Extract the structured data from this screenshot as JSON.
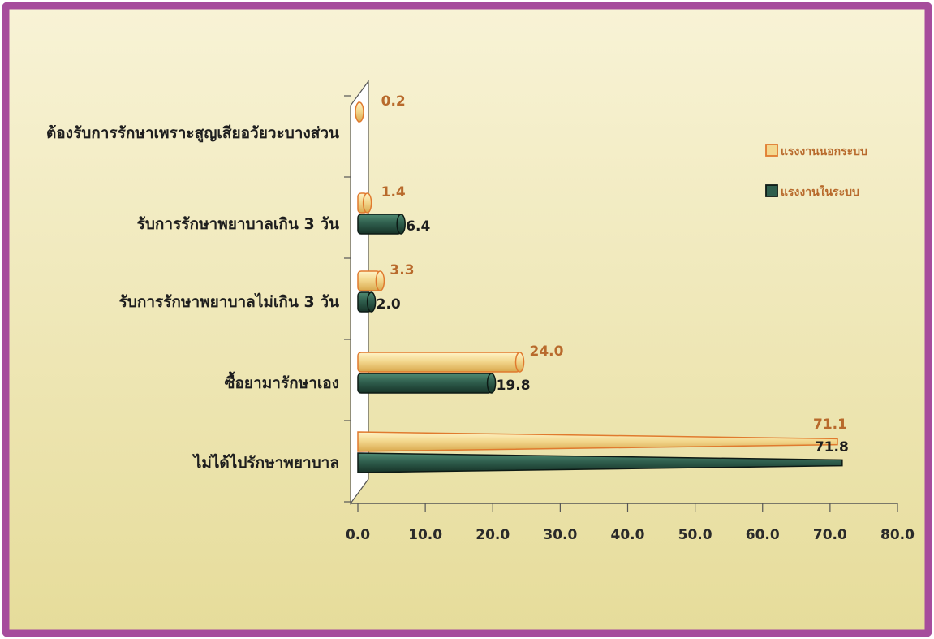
{
  "colors": {
    "frame_border": "#a64c9c",
    "background_top": "#f8f3d6",
    "background_bottom": "#e6dc9a",
    "informal_fill": "#f3d88f",
    "informal_edge": "#e07a2e",
    "informal_text": "#b86a2c",
    "formal_fill": "#2f5e4d",
    "formal_edge": "#0d1a15",
    "formal_text": "#1e1e1e",
    "axis": "#555555"
  },
  "chart_data": {
    "type": "bar",
    "orientation": "horizontal",
    "categories": [
      "ต้องรับการรักษาเพราะสูญเสียอวัยวะบางส่วน",
      "รับการรักษาพยาบาลเกิน 3 วัน",
      "รับการรักษาพยาบาลไม่เกิน 3 วัน",
      "ซื้อยามารักษาเอง",
      "ไม่ได้ไปรักษาพยาบาล"
    ],
    "series": [
      {
        "name": "แรงงานนอกระบบ",
        "values": [
          0.2,
          1.4,
          3.3,
          24.0,
          71.1
        ],
        "labels": [
          "0.2",
          "1.4",
          "3.3",
          "24.0",
          "71.1"
        ]
      },
      {
        "name": "แรงงานในระบบ",
        "values": [
          null,
          6.4,
          2.0,
          19.8,
          71.8
        ],
        "labels": [
          null,
          "6.4",
          "2.0",
          "19.8",
          "71.8"
        ]
      }
    ],
    "xlim": [
      0,
      80
    ],
    "x_ticks": [
      "0.0",
      "10.0",
      "20.0",
      "30.0",
      "40.0",
      "50.0",
      "60.0",
      "70.0",
      "80.0"
    ],
    "legend_position": "right",
    "grid": false
  }
}
